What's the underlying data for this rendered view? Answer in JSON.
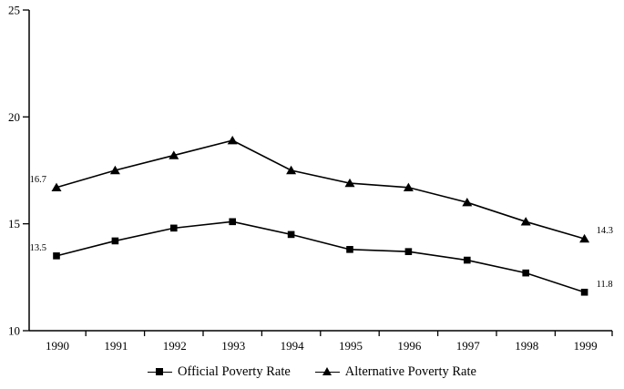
{
  "chart_data": {
    "type": "line",
    "title": "",
    "xlabel": "",
    "ylabel": "",
    "x": [
      "1990",
      "1991",
      "1992",
      "1993",
      "1994",
      "1995",
      "1996",
      "1997",
      "1998",
      "1999"
    ],
    "series": [
      {
        "name": "Official Poverty Rate",
        "marker": "square",
        "color": "#000000",
        "values": [
          13.5,
          14.2,
          14.8,
          15.1,
          14.5,
          13.8,
          13.7,
          13.3,
          12.7,
          11.8
        ]
      },
      {
        "name": "Alternative Poverty Rate",
        "marker": "triangle",
        "color": "#000000",
        "values": [
          16.7,
          17.5,
          18.2,
          18.9,
          17.5,
          16.9,
          16.7,
          16.0,
          15.1,
          14.3
        ]
      }
    ],
    "ylim": [
      10,
      25
    ],
    "yticks": [
      "10",
      "15",
      "20",
      "25"
    ],
    "point_labels": [
      {
        "series": 1,
        "index": 0,
        "text": "16.7",
        "side": "left"
      },
      {
        "series": 0,
        "index": 0,
        "text": "13.5",
        "side": "left"
      },
      {
        "series": 1,
        "index": 9,
        "text": "14.3",
        "side": "right"
      },
      {
        "series": 0,
        "index": 9,
        "text": "11.8",
        "side": "right"
      }
    ],
    "grid": false,
    "legend_position": "bottom",
    "axis_color": "#000000",
    "background": "#ffffff"
  }
}
